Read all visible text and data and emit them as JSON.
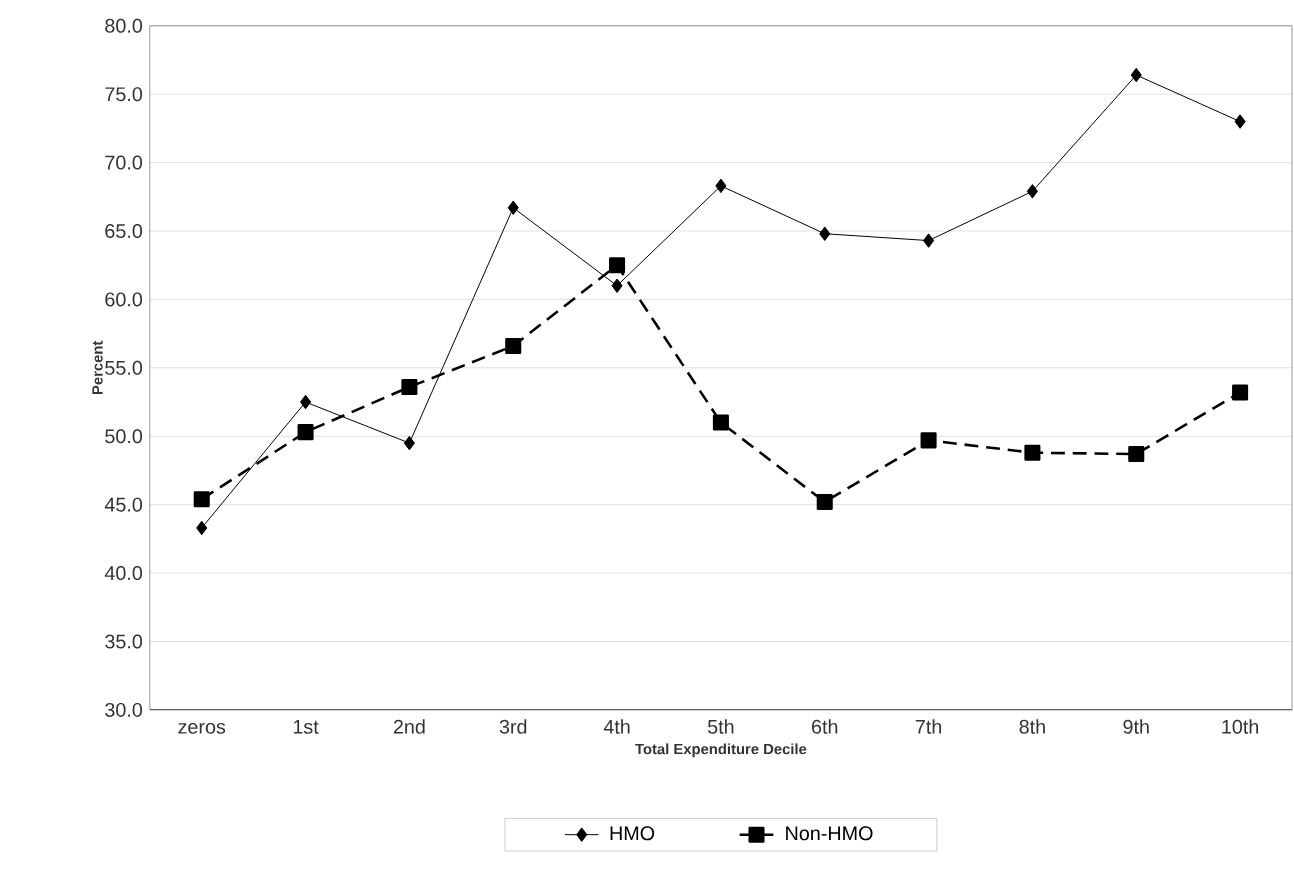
{
  "chart_data": {
    "type": "line",
    "xlabel": "Total Expenditure Decile",
    "ylabel": "Percent",
    "categories": [
      "zeros",
      "1st",
      "2nd",
      "3rd",
      "4th",
      "5th",
      "6th",
      "7th",
      "8th",
      "9th",
      "10th"
    ],
    "series": [
      {
        "name": "HMO",
        "color": "#000000",
        "marker": "diamond",
        "line_style": "solid",
        "values": [
          43.3,
          52.5,
          49.5,
          66.7,
          61.0,
          68.3,
          64.8,
          64.3,
          67.9,
          76.4,
          73.0
        ]
      },
      {
        "name": "Non-HMO",
        "color": "#000000",
        "marker": "square",
        "line_style": "dashed",
        "values": [
          45.4,
          50.3,
          53.6,
          56.6,
          62.5,
          51.0,
          45.2,
          49.7,
          48.8,
          48.7,
          53.2
        ]
      }
    ],
    "ylim": [
      30,
      80
    ],
    "yticks": [
      {
        "value": 30,
        "label": "30.0"
      },
      {
        "value": 35,
        "label": "35.0"
      },
      {
        "value": 40,
        "label": "40.0"
      },
      {
        "value": 45,
        "label": "45.0"
      },
      {
        "value": 50,
        "label": "50.0"
      },
      {
        "value": 55,
        "label": "55.0"
      },
      {
        "value": 60,
        "label": "60.0"
      },
      {
        "value": 65,
        "label": "65.0"
      },
      {
        "value": 70,
        "label": "70.0"
      },
      {
        "value": 75,
        "label": "75.0"
      },
      {
        "value": 80,
        "label": "80.0"
      }
    ],
    "grid": "y",
    "legend": "bottom"
  }
}
